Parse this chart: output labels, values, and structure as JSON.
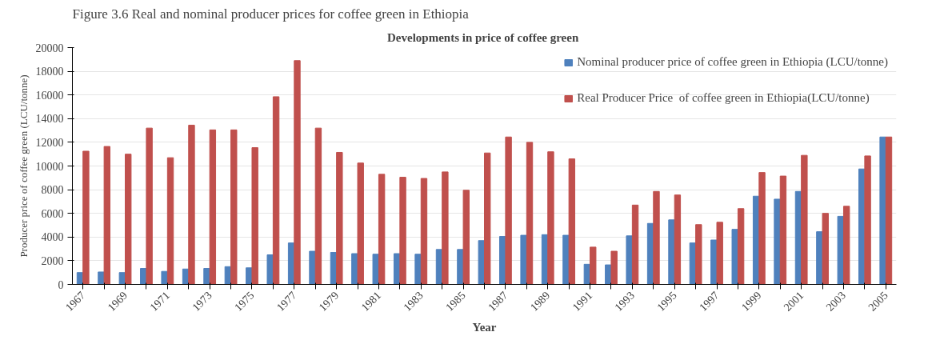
{
  "chart_data": {
    "type": "bar",
    "title": "Developments in  price of coffee green",
    "xlabel": "Year",
    "ylabel": "Producer price of coffee green (LCU/tonne)",
    "annotations": [
      "Figure 3.6 Real and nominal producer prices for coffee green in Ethiopia"
    ],
    "categories": [
      "1967",
      null,
      "1969",
      null,
      "1971",
      null,
      "1973",
      null,
      "1975",
      null,
      "1977",
      null,
      "1979",
      null,
      "1981",
      null,
      "1983",
      null,
      "1985",
      null,
      "1987",
      null,
      "1989",
      null,
      "1991",
      null,
      "1993",
      null,
      "1995",
      null,
      "1997",
      null,
      "1999",
      null,
      "2001",
      null,
      "2003",
      null,
      "2005"
    ],
    "series": [
      {
        "name": "Nominal producer price of coffee green in Ethiopia (LCU/tonne)",
        "color": "#4f81bd",
        "values": [
          1000,
          1050,
          1000,
          1350,
          1100,
          1300,
          1350,
          1500,
          1400,
          2500,
          3500,
          2800,
          2700,
          2600,
          2550,
          2600,
          2550,
          2950,
          2950,
          3700,
          4050,
          4150,
          4200,
          4150,
          1700,
          1650,
          4100,
          5150,
          5450,
          3500,
          3750,
          4650,
          7450,
          7200,
          7850,
          4450,
          5750,
          9750,
          12450
        ]
      },
      {
        "name": "Real Producer Price  of coffee green in Ethiopia(LCU/tonne)",
        "color": "#c0504d",
        "values": [
          11250,
          11650,
          11000,
          13200,
          10700,
          13450,
          13050,
          13050,
          11550,
          15850,
          18900,
          13200,
          11150,
          10250,
          9300,
          9050,
          8950,
          9500,
          7950,
          11100,
          12450,
          12000,
          11200,
          10600,
          3150,
          2800,
          6700,
          7850,
          7550,
          5050,
          5250,
          6400,
          9450,
          9150,
          10900,
          6000,
          6600,
          10850,
          12450
        ]
      }
    ],
    "ylim": [
      0,
      20000
    ],
    "yticks": [
      0,
      2000,
      4000,
      6000,
      8000,
      10000,
      12000,
      14000,
      16000,
      18000,
      20000
    ],
    "grid": "y",
    "legend": "top right"
  }
}
